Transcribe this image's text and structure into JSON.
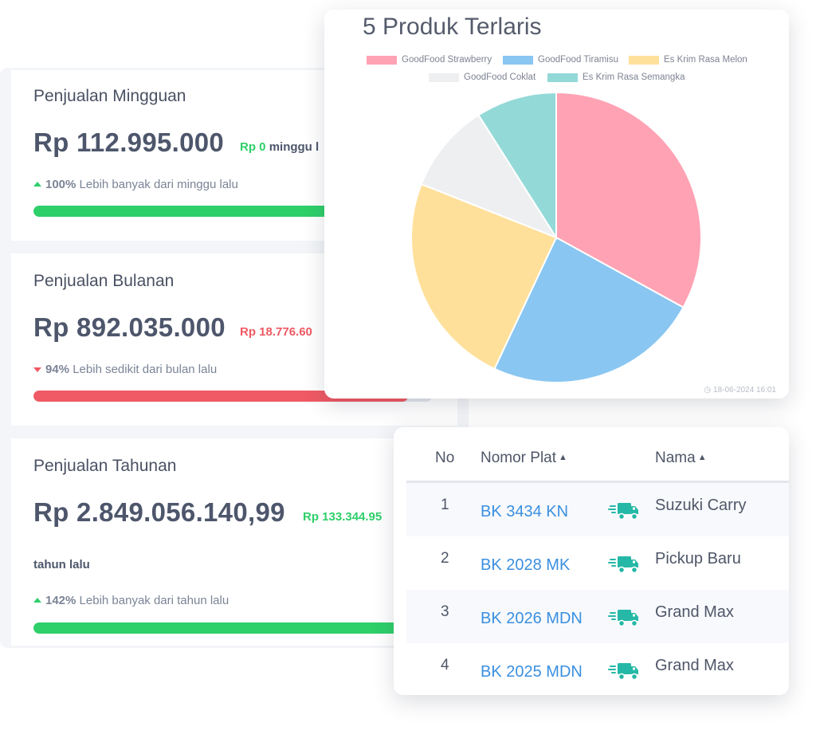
{
  "weekly": {
    "title": "Penjualan Mingguan",
    "amount": "Rp 112.995.000",
    "delta": "Rp 0",
    "delta_suffix": "minggu l",
    "percent": "100%",
    "compare_text": "Lebih banyak dari minggu lalu",
    "progress": 1.0,
    "color": "#2fcf6a"
  },
  "monthly": {
    "title": "Penjualan Bulanan",
    "amount": "Rp 892.035.000",
    "delta": "Rp 18.776.60",
    "percent": "94%",
    "compare_text": "Lebih sedikit dari bulan lalu",
    "progress": 0.94,
    "color": "#ef5a64"
  },
  "yearly": {
    "title": "Penjualan Tahunan",
    "amount": "Rp 2.849.056.140,99",
    "delta": "Rp 133.344.95",
    "period_text": "tahun lalu",
    "percent": "142%",
    "compare_text": "Lebih banyak dari tahun lalu",
    "progress": 1.0,
    "color": "#2fcf6a"
  },
  "chart_data": {
    "type": "pie",
    "title": "5 Produk Terlaris",
    "labels": [
      "GoodFood Strawberry",
      "GoodFood Tiramisu",
      "Es Krim Rasa Melon",
      "GoodFood Coklat",
      "Es Krim Rasa Semangka"
    ],
    "values": [
      33,
      24,
      24,
      10,
      9
    ],
    "colors": [
      "#ffa2b4",
      "#89c6f2",
      "#ffe09b",
      "#eeeff1",
      "#93d9d8"
    ],
    "legend_position": "top",
    "timestamp": "18-06-2024 16:01"
  },
  "table": {
    "headers": {
      "no": "No",
      "plate": "Nomor Plat",
      "name": "Nama"
    },
    "rows": [
      {
        "no": "1",
        "plate": "BK 3434 KN",
        "name": "Suzuki Carry"
      },
      {
        "no": "2",
        "plate": "BK 2028 MK",
        "name": "Pickup Baru"
      },
      {
        "no": "3",
        "plate": "BK 2026 MDN",
        "name": "Grand Max"
      },
      {
        "no": "4",
        "plate": "BK 2025 MDN",
        "name": "Grand Max"
      }
    ],
    "truck_icon": "delivery-truck-icon",
    "truck_color": "#25b8a6"
  }
}
